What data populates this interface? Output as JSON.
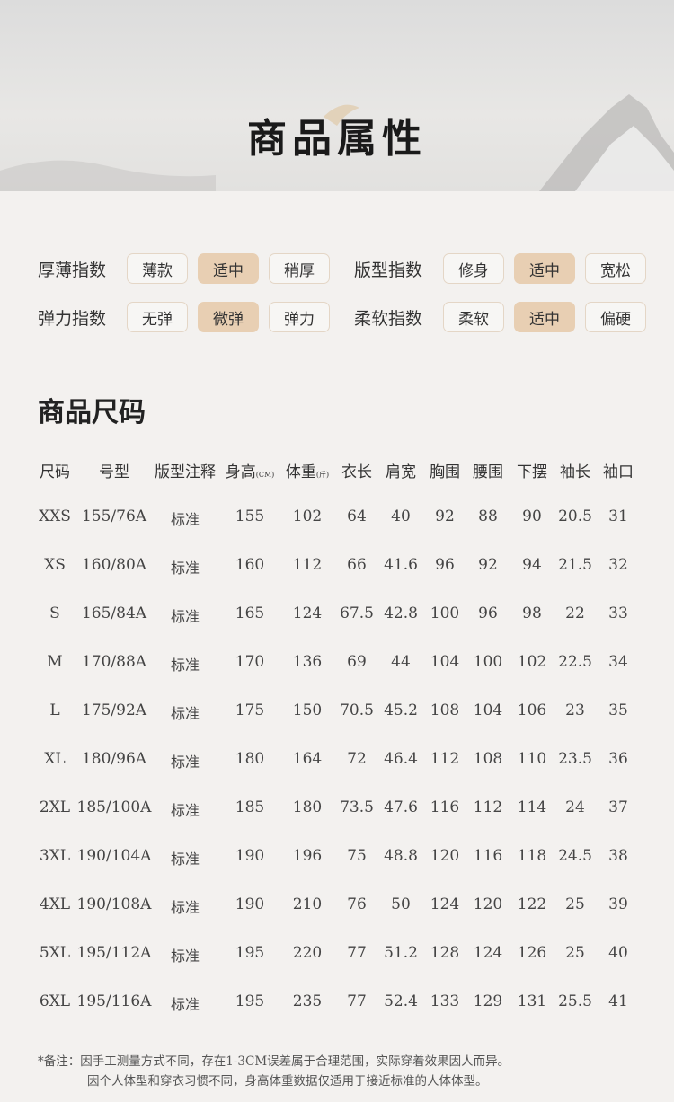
{
  "header": {
    "title": "商品属性"
  },
  "attributes": [
    {
      "label": "厚薄指数",
      "options": [
        "薄款",
        "适中",
        "稍厚"
      ],
      "selected": 1
    },
    {
      "label": "版型指数",
      "options": [
        "修身",
        "适中",
        "宽松"
      ],
      "selected": 1
    },
    {
      "label": "弹力指数",
      "options": [
        "无弹",
        "微弹",
        "弹力"
      ],
      "selected": 1
    },
    {
      "label": "柔软指数",
      "options": [
        "柔软",
        "适中",
        "偏硬"
      ],
      "selected": 1
    }
  ],
  "size_section": {
    "title": "商品尺码"
  },
  "table": {
    "headers": [
      {
        "t": "尺码"
      },
      {
        "t": "号型"
      },
      {
        "t": "版型注释"
      },
      {
        "t": "身高",
        "u": "(CM)"
      },
      {
        "t": "体重",
        "u": "(斤)"
      },
      {
        "t": "衣长"
      },
      {
        "t": "肩宽"
      },
      {
        "t": "胸围"
      },
      {
        "t": "腰围"
      },
      {
        "t": "下摆"
      },
      {
        "t": "袖长"
      },
      {
        "t": "袖口"
      }
    ],
    "rows": [
      [
        "XXS",
        "155/76A",
        "标准",
        "155",
        "102",
        "64",
        "40",
        "92",
        "88",
        "90",
        "20.5",
        "31"
      ],
      [
        "XS",
        "160/80A",
        "标准",
        "160",
        "112",
        "66",
        "41.6",
        "96",
        "92",
        "94",
        "21.5",
        "32"
      ],
      [
        "S",
        "165/84A",
        "标准",
        "165",
        "124",
        "67.5",
        "42.8",
        "100",
        "96",
        "98",
        "22",
        "33"
      ],
      [
        "M",
        "170/88A",
        "标准",
        "170",
        "136",
        "69",
        "44",
        "104",
        "100",
        "102",
        "22.5",
        "34"
      ],
      [
        "L",
        "175/92A",
        "标准",
        "175",
        "150",
        "70.5",
        "45.2",
        "108",
        "104",
        "106",
        "23",
        "35"
      ],
      [
        "XL",
        "180/96A",
        "标准",
        "180",
        "164",
        "72",
        "46.4",
        "112",
        "108",
        "110",
        "23.5",
        "36"
      ],
      [
        "2XL",
        "185/100A",
        "标准",
        "185",
        "180",
        "73.5",
        "47.6",
        "116",
        "112",
        "114",
        "24",
        "37"
      ],
      [
        "3XL",
        "190/104A",
        "标准",
        "190",
        "196",
        "75",
        "48.8",
        "120",
        "116",
        "118",
        "24.5",
        "38"
      ],
      [
        "4XL",
        "190/108A",
        "标准",
        "190",
        "210",
        "76",
        "50",
        "124",
        "120",
        "122",
        "25",
        "39"
      ],
      [
        "5XL",
        "195/112A",
        "标准",
        "195",
        "220",
        "77",
        "51.2",
        "128",
        "124",
        "126",
        "25",
        "40"
      ],
      [
        "6XL",
        "195/116A",
        "标准",
        "195",
        "235",
        "77",
        "52.4",
        "133",
        "129",
        "131",
        "25.5",
        "41"
      ]
    ]
  },
  "notes": [
    "*备注：因手工测量方式不同，存在1-3CM误差属于合理范围，实际穿着效果因人而异。",
    "因个人体型和穿衣习惯不同，身高体重数据仅适用于接近标准的人体体型。"
  ],
  "colors": {
    "selected_chip": "#e8cfb3",
    "chip_border": "#e4d6c6",
    "background": "#f3f1ef"
  }
}
